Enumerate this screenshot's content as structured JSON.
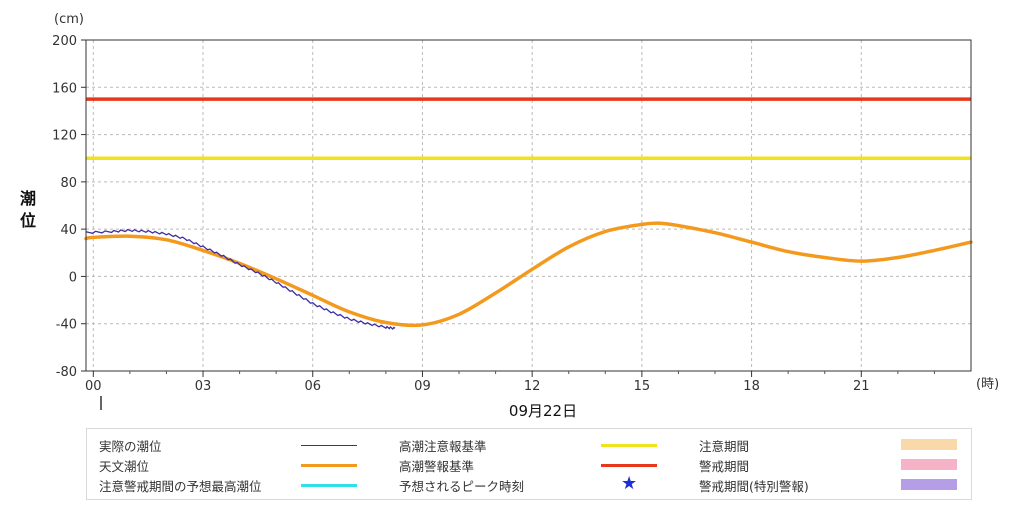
{
  "chart_data": {
    "type": "line",
    "y_unit": "(cm)",
    "ylabel": "潮位",
    "x_unit": "(時)",
    "date_label": "09月22日",
    "ylim": [
      -80,
      200
    ],
    "yticks": [
      -80,
      -40,
      0,
      40,
      80,
      120,
      160,
      200
    ],
    "xlim": [
      -0.2,
      24
    ],
    "xticks": [
      0,
      3,
      6,
      9,
      12,
      15,
      18,
      21
    ],
    "xtick_labels": [
      "00",
      "03",
      "06",
      "09",
      "12",
      "15",
      "18",
      "21"
    ],
    "grid": true,
    "series": [
      {
        "name": "実際の潮位",
        "color": "#3b2ea3",
        "x": [
          -0.2,
          0.5,
          1,
          1.5,
          2,
          2.5,
          3,
          3.5,
          4,
          4.5,
          5,
          5.5,
          6,
          6.5,
          7,
          7.5,
          8,
          8.25
        ],
        "y": [
          37,
          38,
          39,
          38,
          36,
          32,
          25,
          18,
          10,
          3,
          -5,
          -14,
          -23,
          -30,
          -36,
          -40,
          -43,
          -44
        ]
      },
      {
        "name": "天文潮位",
        "color": "#f39a1e",
        "x": [
          -0.2,
          0,
          1,
          2,
          3,
          4,
          5,
          6,
          7,
          8,
          9,
          10,
          11,
          12,
          13,
          14,
          15,
          15.5,
          16,
          17,
          18,
          19,
          20,
          21,
          22,
          23,
          24
        ],
        "y": [
          32,
          33,
          34,
          31,
          22,
          11,
          -2,
          -16,
          -30,
          -39,
          -41,
          -32,
          -14,
          6,
          25,
          38,
          44,
          45,
          43,
          37,
          29,
          21,
          16,
          13,
          16,
          22,
          29
        ]
      }
    ],
    "thresholds": [
      {
        "name": "高潮注意報基準",
        "value": 100,
        "color": "#f0e21c"
      },
      {
        "name": "高潮警報基準",
        "value": 150,
        "color": "#e8371b"
      }
    ]
  },
  "legend": [
    {
      "label": "実際の潮位",
      "kind": "thin-line",
      "color": "#3b2ea3"
    },
    {
      "label": "天文潮位",
      "kind": "line",
      "color": "#f39a1e"
    },
    {
      "label": "注意警戒期間の予想最高潮位",
      "kind": "line",
      "color": "#2fe0e8"
    },
    {
      "label": "高潮注意報基準",
      "kind": "line",
      "color": "#f0e21c"
    },
    {
      "label": "高潮警報基準",
      "kind": "line",
      "color": "#e8371b"
    },
    {
      "label": "予想されるピーク時刻",
      "kind": "star",
      "color": "#1a2fd6"
    },
    {
      "label": "注意期間",
      "kind": "box",
      "color": "#f9d9a9"
    },
    {
      "label": "警戒期間",
      "kind": "box",
      "color": "#f6b3c8"
    },
    {
      "label": "警戒期間(特別警報)",
      "kind": "box",
      "color": "#b69ee6"
    }
  ]
}
